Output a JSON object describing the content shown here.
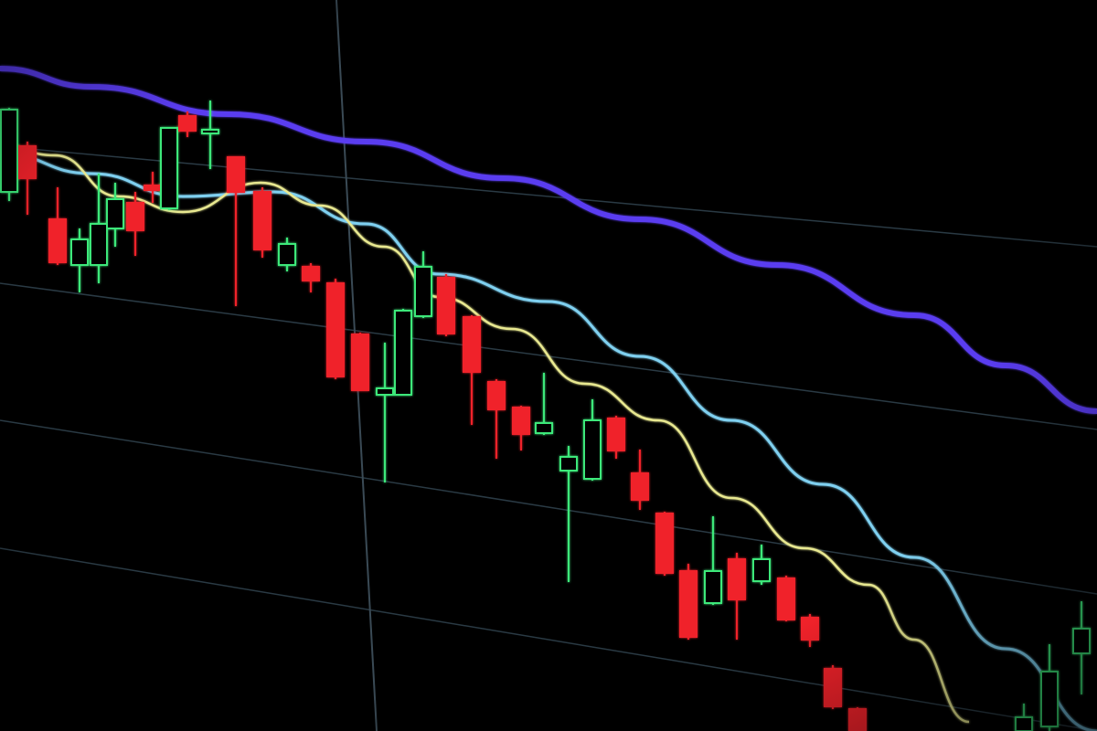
{
  "scene": {
    "colors": {
      "background": "#000000",
      "bullish": "#3ee87a",
      "bearish": "#f0202c",
      "ma_long": "#5a3cf0",
      "ma_mid": "#7fd0f0",
      "ma_short": "#e8e890",
      "grid": "#2a3a44"
    }
  }
}
